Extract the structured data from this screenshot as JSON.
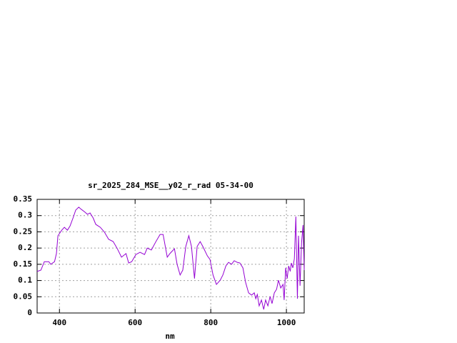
{
  "chart_data": {
    "type": "line",
    "title": "sr_2025_284_MSE__y02_r_rad 05-34-00",
    "x_label": "nm",
    "xlim": [
      341,
      1047
    ],
    "xticks": [
      400,
      600,
      800,
      1000
    ],
    "ylim": [
      0,
      0.35
    ],
    "yticks": [
      0,
      0.05,
      0.1,
      0.15,
      0.2,
      0.25,
      0.3,
      0.35
    ],
    "grid": true,
    "x": [
      341,
      351,
      360,
      372,
      377,
      387,
      392,
      396,
      406,
      413,
      421,
      428,
      436,
      443,
      451,
      458,
      466,
      474,
      481,
      489,
      496,
      508,
      519,
      530,
      542,
      553,
      564,
      576,
      583,
      591,
      602,
      613,
      625,
      632,
      643,
      655,
      666,
      674,
      685,
      692,
      704,
      711,
      719,
      726,
      734,
      742,
      749,
      757,
      764,
      772,
      779,
      791,
      798,
      806,
      815,
      825,
      832,
      840,
      847,
      855,
      862,
      870,
      877,
      885,
      892,
      900,
      908,
      915,
      919,
      923,
      928,
      934,
      940,
      945,
      951,
      957,
      962,
      968,
      974,
      979,
      985,
      991,
      994,
      998,
      1002,
      1006,
      1010,
      1013,
      1017,
      1021,
      1025,
      1029,
      1032,
      1036,
      1040,
      1044,
      1047
    ],
    "series": [
      {
        "color": "#9400d3",
        "values": [
          0.128,
          0.132,
          0.158,
          0.158,
          0.15,
          0.158,
          0.183,
          0.238,
          0.255,
          0.264,
          0.255,
          0.268,
          0.293,
          0.317,
          0.326,
          0.319,
          0.312,
          0.304,
          0.308,
          0.293,
          0.273,
          0.264,
          0.249,
          0.227,
          0.22,
          0.198,
          0.172,
          0.183,
          0.154,
          0.158,
          0.18,
          0.187,
          0.18,
          0.2,
          0.194,
          0.22,
          0.242,
          0.242,
          0.172,
          0.183,
          0.198,
          0.15,
          0.117,
          0.132,
          0.205,
          0.238,
          0.205,
          0.106,
          0.205,
          0.22,
          0.205,
          0.176,
          0.165,
          0.117,
          0.088,
          0.101,
          0.117,
          0.145,
          0.156,
          0.15,
          0.161,
          0.156,
          0.154,
          0.139,
          0.095,
          0.062,
          0.055,
          0.062,
          0.044,
          0.057,
          0.022,
          0.04,
          0.011,
          0.04,
          0.022,
          0.051,
          0.029,
          0.062,
          0.073,
          0.101,
          0.077,
          0.088,
          0.04,
          0.139,
          0.106,
          0.145,
          0.128,
          0.154,
          0.139,
          0.167,
          0.297,
          0.044,
          0.238,
          0.084,
          0.216,
          0.271,
          0.132
        ]
      }
    ]
  }
}
